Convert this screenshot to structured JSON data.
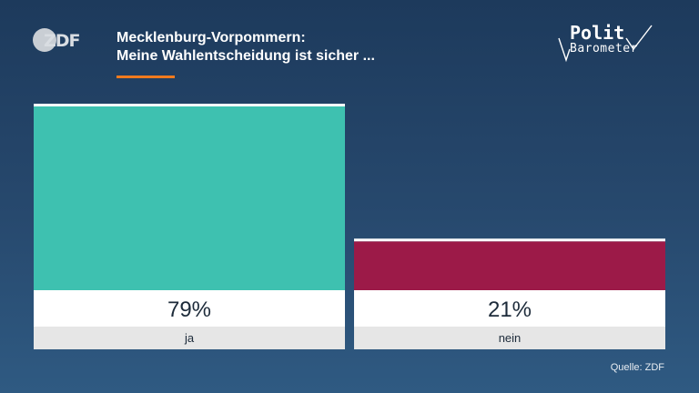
{
  "brand": {
    "logo": "ZDF",
    "polit_line1": "Polit",
    "polit_line2": "Barometer"
  },
  "header": {
    "title_line1": "Mecklenburg-Vorpommern:",
    "title_line2": "Meine Wahlentscheidung ist sicher ..."
  },
  "source": "Quelle: ZDF",
  "chart_data": {
    "type": "bar",
    "categories": [
      "ja",
      "nein"
    ],
    "values": [
      79,
      21
    ],
    "value_labels": [
      "79%",
      "21%"
    ],
    "colors": [
      "#3ec1b0",
      "#9c1a48"
    ],
    "ylim": [
      0,
      79
    ],
    "grid": false,
    "legend": "none"
  }
}
